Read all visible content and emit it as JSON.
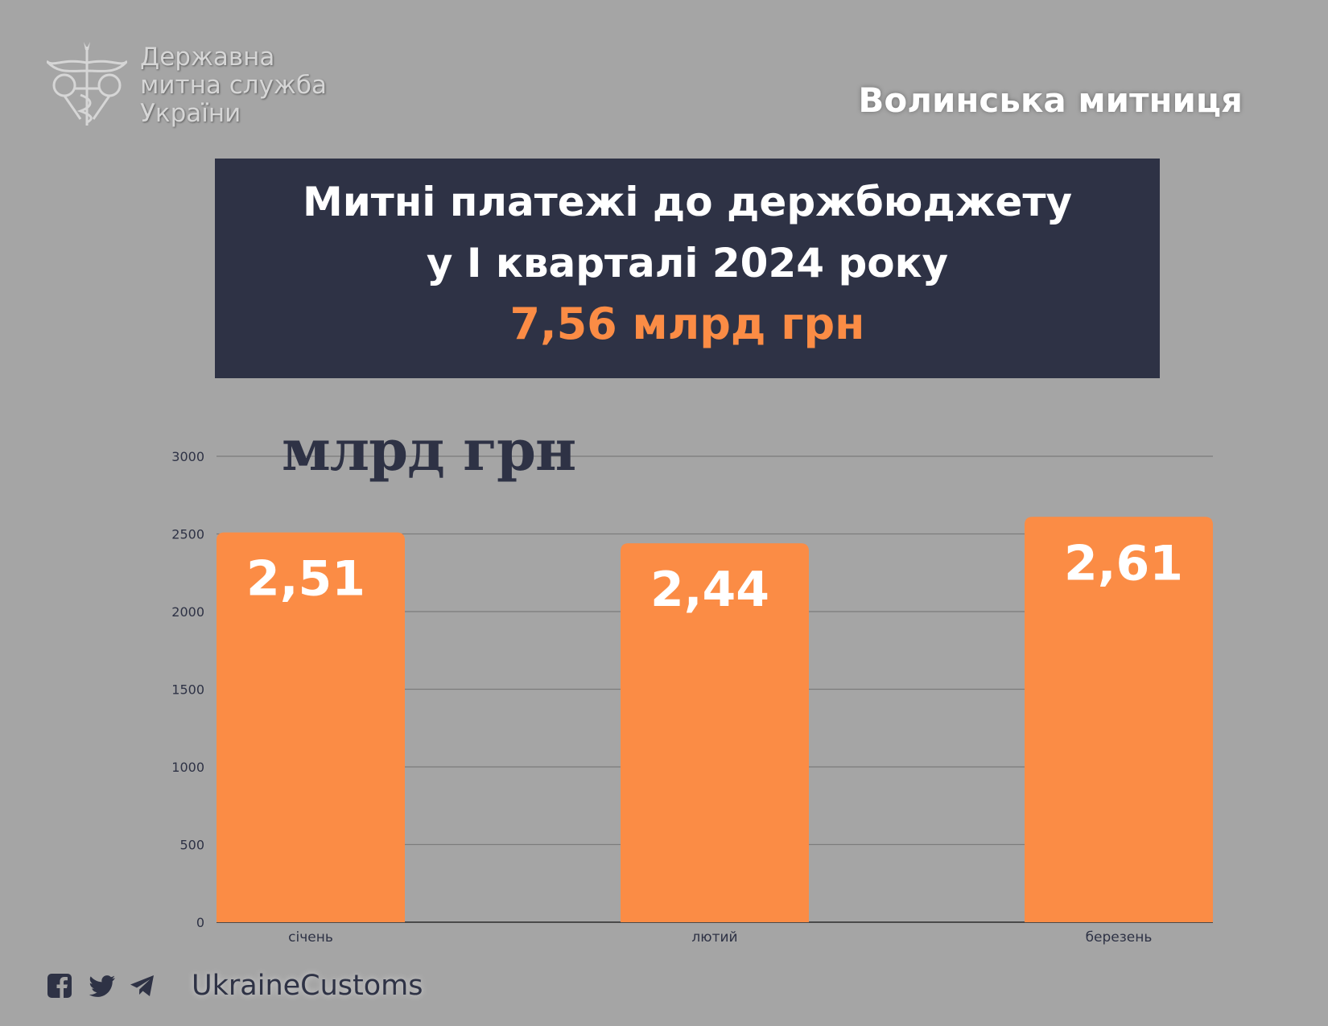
{
  "header": {
    "logo_lines": [
      "Державна",
      "митна служба",
      "України"
    ],
    "logo_icon": "customs-emblem-icon",
    "region": "Волинська митниця"
  },
  "banner": {
    "line1": "Митні платежі до  держбюджету",
    "line2": "у  І кварталі 2024 року",
    "total": "7,56 млрд грн",
    "total_color": "#fb8c45",
    "background": "#2e3245"
  },
  "chart_data": {
    "type": "bar",
    "title": "",
    "xlabel": "",
    "ylabel": "млрд грн",
    "categories": [
      "січень",
      "лютий",
      "березень"
    ],
    "values": [
      2510,
      2440,
      2610
    ],
    "data_labels": [
      "2,51",
      "2,44",
      "2,61"
    ],
    "ylim": [
      0,
      3000
    ],
    "y_ticks": [
      0,
      500,
      1000,
      1500,
      2000,
      2500,
      3000
    ],
    "grid": true,
    "legend": "none",
    "bar_color": "#fb8c45"
  },
  "footer": {
    "icons": [
      "facebook-icon",
      "twitter-icon",
      "telegram-icon"
    ],
    "handle": "UkraineCustoms"
  }
}
